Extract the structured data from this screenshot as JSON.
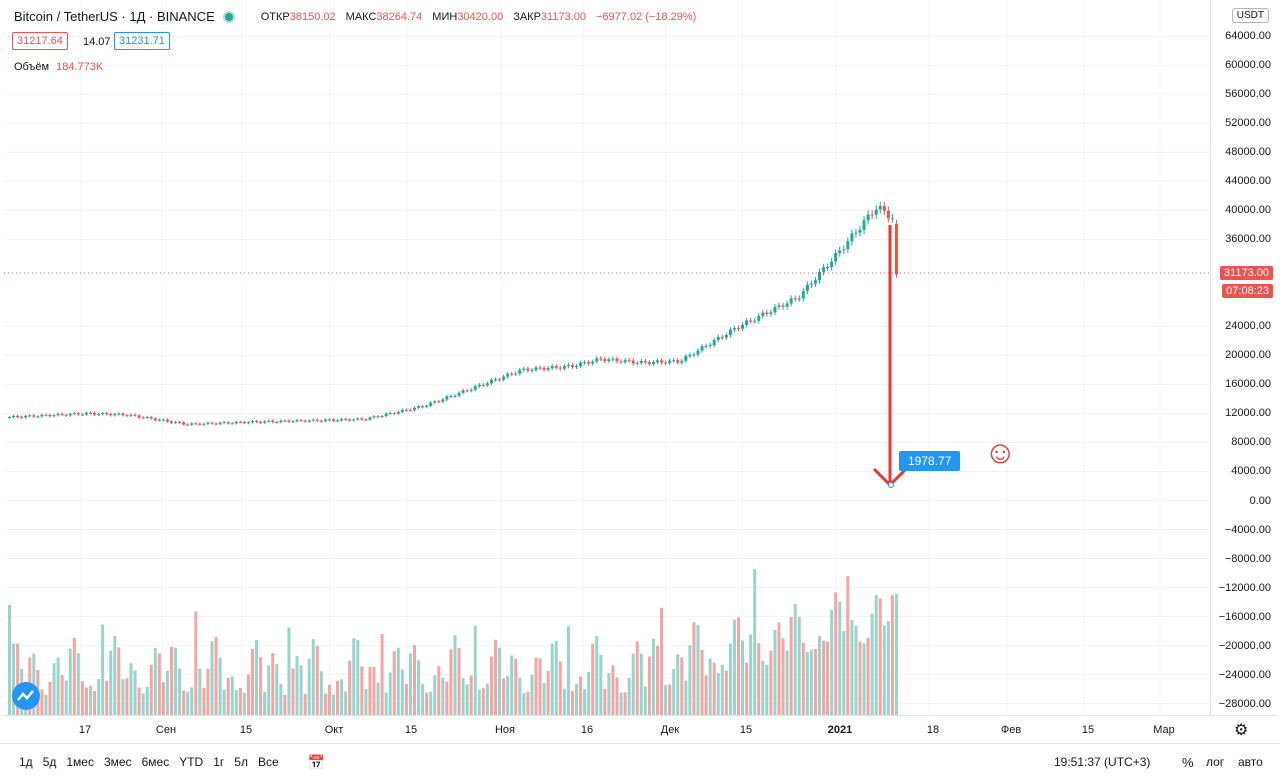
{
  "legend": {
    "symbol": "Bitcoin / TetherUS · 1Д · BINANCE",
    "open_label": "ОТКР",
    "open": "38150.02",
    "high_label": "МАКС",
    "high": "38264.74",
    "low_label": "МИН",
    "low": "30420.00",
    "close_label": "ЗАКР",
    "close": "31173.00",
    "change": "−6977.02 (−18.29%)",
    "bid": "31217.64",
    "spread": "14.07",
    "ask": "31231.71",
    "volume_label": "Объём",
    "volume": "184.773K"
  },
  "price_scale": {
    "currency": "USDT",
    "last_price": "31173.00",
    "countdown": "07:08:23",
    "labels": [
      "64000.00",
      "60000.00",
      "56000.00",
      "52000.00",
      "48000.00",
      "44000.00",
      "40000.00",
      "36000.00",
      "24000.00",
      "20000.00",
      "16000.00",
      "12000.00",
      "8000.00",
      "4000.00",
      "0.00",
      "−4000.00",
      "−8000.00",
      "−12000.00",
      "−16000.00",
      "−20000.00",
      "−24000.00",
      "−28000.00"
    ]
  },
  "time_axis": [
    "17",
    "Сен",
    "15",
    "Окт",
    "15",
    "Ноя",
    "16",
    "Дек",
    "15",
    "2021",
    "18",
    "Фев",
    "15",
    "Мар"
  ],
  "annotation": {
    "value": "1978.77",
    "smiley": "☺"
  },
  "bottom_bar": {
    "ranges": [
      "1д",
      "5д",
      "1мес",
      "3мес",
      "6мес",
      "YTD",
      "1г",
      "5л",
      "Все"
    ],
    "clock": "19:51:37 (UTC+3)",
    "percent": "%",
    "log": "лог",
    "auto": "авто"
  },
  "colors": {
    "up": "#26a69a",
    "down": "#ef5350",
    "vol_up": "#9bd3cc",
    "vol_down": "#f3a5a3",
    "accent": "#2196f3",
    "arrow": "#e53935"
  }
}
